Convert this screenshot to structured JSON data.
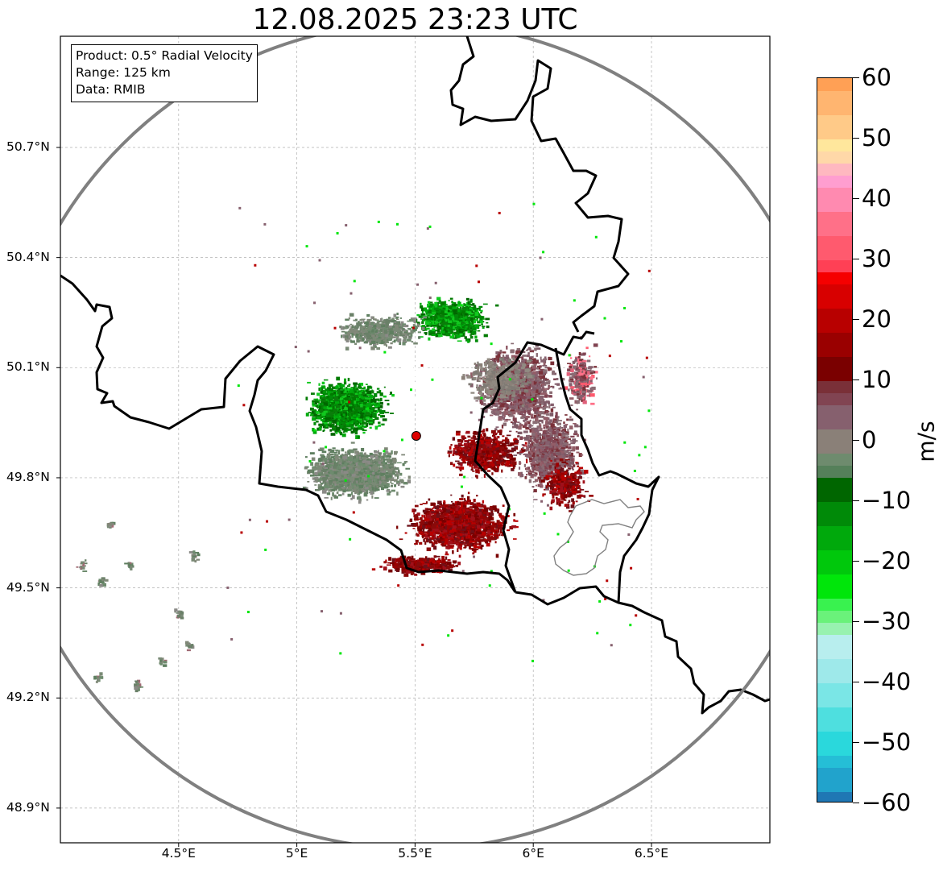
{
  "title": "12.08.2025 23:23 UTC",
  "info": {
    "product": "Product: 0.5° Radial Velocity",
    "range": "Range: 125 km",
    "source": "Data: RMIB"
  },
  "map": {
    "lon_range": [
      4.0,
      7.0
    ],
    "lat_range": [
      48.8,
      51.1
    ],
    "lat_ticks": [
      {
        "value": 50.7,
        "label": "50.7°N"
      },
      {
        "value": 50.4,
        "label": "50.4°N"
      },
      {
        "value": 50.1,
        "label": "50.1°N"
      },
      {
        "value": 49.8,
        "label": "49.8°N"
      },
      {
        "value": 49.5,
        "label": "49.5°N"
      },
      {
        "value": 49.2,
        "label": "49.2°N"
      },
      {
        "value": 48.9,
        "label": "48.9°N"
      }
    ],
    "lon_ticks": [
      {
        "value": 4.5,
        "label": "4.5°E"
      },
      {
        "value": 5.0,
        "label": "5°E"
      },
      {
        "value": 5.5,
        "label": "5.5°E"
      },
      {
        "value": 6.0,
        "label": "6°E"
      },
      {
        "value": 6.5,
        "label": "6.5°E"
      }
    ],
    "radar_site": {
      "lon": 5.505,
      "lat": 49.914
    },
    "range_km": 125,
    "gridlines": true,
    "colors": {
      "range_ring": "#808080",
      "border": "#000000",
      "subdivision": "#808080",
      "site": "#dd0000",
      "grid": "#b0b0b0"
    }
  },
  "colorbar": {
    "unit": "m/s",
    "min": -60,
    "max": 60,
    "ticks": [
      {
        "value": 60,
        "label": "60"
      },
      {
        "value": 50,
        "label": "50"
      },
      {
        "value": 40,
        "label": "40"
      },
      {
        "value": 30,
        "label": "30"
      },
      {
        "value": 20,
        "label": "20"
      },
      {
        "value": 10,
        "label": "10"
      },
      {
        "value": 0,
        "label": "0"
      },
      {
        "value": -10,
        "label": "−10"
      },
      {
        "value": -20,
        "label": "−20"
      },
      {
        "value": -30,
        "label": "−30"
      },
      {
        "value": -40,
        "label": "−40"
      },
      {
        "value": -50,
        "label": "−50"
      },
      {
        "value": -60,
        "label": "−60"
      }
    ],
    "segments": [
      {
        "from": -60,
        "to": -58,
        "color": "#1f77b4"
      },
      {
        "from": -58,
        "to": -54,
        "color": "#21a3cc"
      },
      {
        "from": -54,
        "to": -52,
        "color": "#25bed6"
      },
      {
        "from": -52,
        "to": -48,
        "color": "#2ad8dc"
      },
      {
        "from": -48,
        "to": -44,
        "color": "#4edfdf"
      },
      {
        "from": -44,
        "to": -40,
        "color": "#7ae6e6"
      },
      {
        "from": -40,
        "to": -36,
        "color": "#9ee9ea"
      },
      {
        "from": -36,
        "to": -32,
        "color": "#b8eeee"
      },
      {
        "from": -32,
        "to": -30,
        "color": "#98f2b0"
      },
      {
        "from": -30,
        "to": -28,
        "color": "#6af27a"
      },
      {
        "from": -28,
        "to": -26,
        "color": "#39f24f"
      },
      {
        "from": -26,
        "to": -22,
        "color": "#00e60a"
      },
      {
        "from": -22,
        "to": -18,
        "color": "#00c80c"
      },
      {
        "from": -18,
        "to": -14,
        "color": "#00a90c"
      },
      {
        "from": -14,
        "to": -10,
        "color": "#008a08"
      },
      {
        "from": -10,
        "to": -6,
        "color": "#006600"
      },
      {
        "from": -6,
        "to": -4,
        "color": "#55805a"
      },
      {
        "from": -4,
        "to": -2,
        "color": "#6e8b6e"
      },
      {
        "from": -2,
        "to": 2,
        "color": "#8a8078"
      },
      {
        "from": 2,
        "to": 6,
        "color": "#86606e"
      },
      {
        "from": 6,
        "to": 8,
        "color": "#814452"
      },
      {
        "from": 8,
        "to": 10,
        "color": "#7a3038"
      },
      {
        "from": 10,
        "to": 14,
        "color": "#7a0000"
      },
      {
        "from": 14,
        "to": 18,
        "color": "#9a0000"
      },
      {
        "from": 18,
        "to": 22,
        "color": "#b80000"
      },
      {
        "from": 22,
        "to": 26,
        "color": "#d80000"
      },
      {
        "from": 26,
        "to": 28,
        "color": "#f50000"
      },
      {
        "from": 28,
        "to": 30,
        "color": "#ff4055"
      },
      {
        "from": 30,
        "to": 34,
        "color": "#ff5a6e"
      },
      {
        "from": 34,
        "to": 38,
        "color": "#ff7088"
      },
      {
        "from": 38,
        "to": 42,
        "color": "#ff8ab0"
      },
      {
        "from": 42,
        "to": 44,
        "color": "#ff9ed0"
      },
      {
        "from": 44,
        "to": 46,
        "color": "#ffb8c0"
      },
      {
        "from": 46,
        "to": 48,
        "color": "#ffd8a8"
      },
      {
        "from": 48,
        "to": 50,
        "color": "#ffe79c"
      },
      {
        "from": 50,
        "to": 54,
        "color": "#ffca88"
      },
      {
        "from": 54,
        "to": 58,
        "color": "#ffb570"
      },
      {
        "from": 58,
        "to": 60,
        "color": "#ffa055"
      }
    ]
  }
}
